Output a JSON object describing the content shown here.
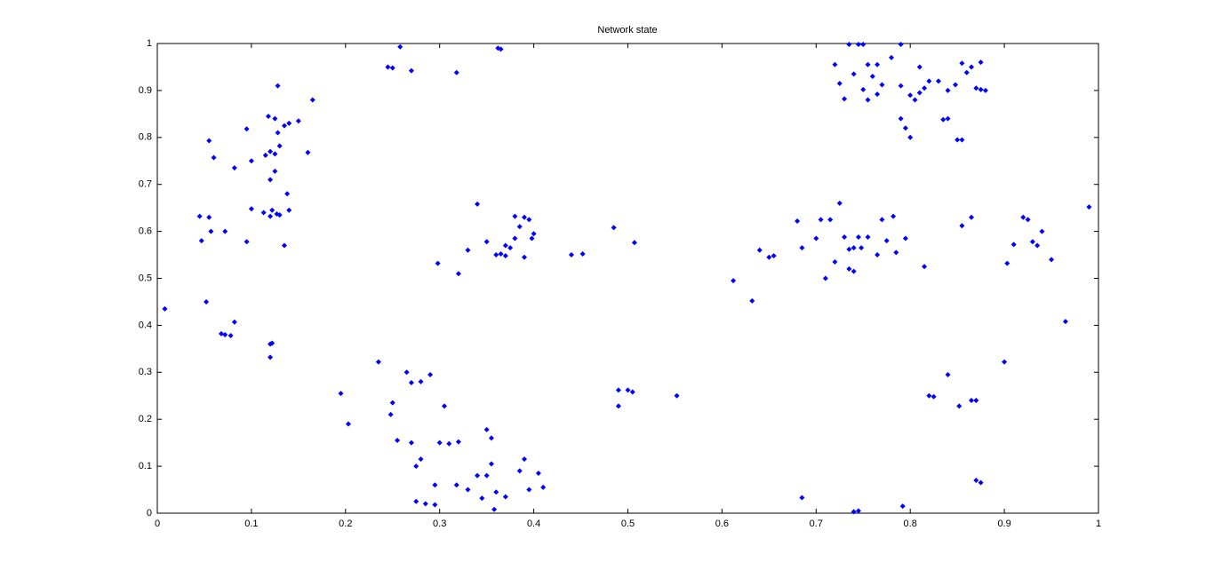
{
  "chart_data": {
    "type": "scatter",
    "title": "Network state",
    "x": [
      0.008,
      0.052,
      0.072,
      0.068,
      0.078,
      0.082,
      0.12,
      0.122,
      0.12,
      0.045,
      0.055,
      0.047,
      0.057,
      0.072,
      0.095,
      0.1,
      0.113,
      0.12,
      0.13,
      0.14,
      0.135,
      0.138,
      0.122,
      0.127,
      0.055,
      0.06,
      0.082,
      0.095,
      0.1,
      0.115,
      0.125,
      0.12,
      0.13,
      0.12,
      0.125,
      0.118,
      0.125,
      0.135,
      0.14,
      0.128,
      0.128,
      0.15,
      0.16,
      0.165,
      0.245,
      0.25,
      0.258,
      0.27,
      0.318,
      0.365,
      0.362,
      0.34,
      0.35,
      0.33,
      0.36,
      0.37,
      0.365,
      0.37,
      0.375,
      0.38,
      0.39,
      0.395,
      0.385,
      0.38,
      0.39,
      0.4,
      0.398,
      0.44,
      0.452,
      0.485,
      0.507,
      0.298,
      0.32,
      0.195,
      0.203,
      0.235,
      0.25,
      0.248,
      0.255,
      0.265,
      0.27,
      0.28,
      0.29,
      0.27,
      0.275,
      0.28,
      0.295,
      0.305,
      0.3,
      0.31,
      0.32,
      0.275,
      0.285,
      0.295,
      0.318,
      0.33,
      0.34,
      0.35,
      0.345,
      0.35,
      0.355,
      0.355,
      0.36,
      0.358,
      0.37,
      0.385,
      0.39,
      0.405,
      0.41,
      0.395,
      0.49,
      0.5,
      0.505,
      0.49,
      0.552,
      0.612,
      0.632,
      0.64,
      0.65,
      0.655,
      0.68,
      0.685,
      0.7,
      0.705,
      0.715,
      0.725,
      0.72,
      0.71,
      0.73,
      0.74,
      0.735,
      0.748,
      0.745,
      0.755,
      0.74,
      0.735,
      0.765,
      0.77,
      0.775,
      0.785,
      0.782,
      0.795,
      0.815,
      0.685,
      0.74,
      0.745,
      0.792,
      0.72,
      0.725,
      0.73,
      0.74,
      0.745,
      0.735,
      0.75,
      0.755,
      0.765,
      0.76,
      0.77,
      0.75,
      0.755,
      0.765,
      0.78,
      0.79,
      0.79,
      0.8,
      0.81,
      0.805,
      0.815,
      0.82,
      0.83,
      0.81,
      0.84,
      0.84,
      0.835,
      0.85,
      0.855,
      0.86,
      0.865,
      0.87,
      0.875,
      0.88,
      0.855,
      0.875,
      0.79,
      0.795,
      0.8,
      0.848,
      0.82,
      0.825,
      0.84,
      0.852,
      0.865,
      0.87,
      0.87,
      0.875,
      0.855,
      0.865,
      0.9,
      0.903,
      0.91,
      0.92,
      0.925,
      0.93,
      0.935,
      0.94,
      0.95,
      0.965,
      0.99
    ],
    "values": [
      0.435,
      0.45,
      0.38,
      0.382,
      0.378,
      0.407,
      0.36,
      0.362,
      0.332,
      0.632,
      0.63,
      0.58,
      0.6,
      0.6,
      0.578,
      0.648,
      0.64,
      0.632,
      0.635,
      0.645,
      0.57,
      0.68,
      0.645,
      0.637,
      0.793,
      0.757,
      0.735,
      0.818,
      0.75,
      0.762,
      0.765,
      0.77,
      0.782,
      0.71,
      0.728,
      0.845,
      0.84,
      0.825,
      0.83,
      0.81,
      0.91,
      0.835,
      0.768,
      0.88,
      0.95,
      0.948,
      0.993,
      0.942,
      0.938,
      0.988,
      0.99,
      0.658,
      0.578,
      0.56,
      0.55,
      0.548,
      0.552,
      0.57,
      0.565,
      0.632,
      0.63,
      0.625,
      0.61,
      0.585,
      0.545,
      0.595,
      0.585,
      0.55,
      0.552,
      0.608,
      0.576,
      0.532,
      0.51,
      0.255,
      0.19,
      0.322,
      0.235,
      0.21,
      0.155,
      0.3,
      0.278,
      0.28,
      0.295,
      0.15,
      0.1,
      0.115,
      0.06,
      0.228,
      0.15,
      0.148,
      0.152,
      0.025,
      0.02,
      0.018,
      0.06,
      0.05,
      0.08,
      0.08,
      0.032,
      0.178,
      0.16,
      0.105,
      0.045,
      0.008,
      0.035,
      0.09,
      0.115,
      0.085,
      0.055,
      0.05,
      0.262,
      0.262,
      0.258,
      0.228,
      0.25,
      0.495,
      0.452,
      0.56,
      0.545,
      0.548,
      0.622,
      0.565,
      0.585,
      0.625,
      0.625,
      0.66,
      0.535,
      0.5,
      0.588,
      0.565,
      0.562,
      0.565,
      0.588,
      0.588,
      0.515,
      0.52,
      0.55,
      0.625,
      0.58,
      0.555,
      0.632,
      0.585,
      0.525,
      0.033,
      0.003,
      0.005,
      0.015,
      0.955,
      0.915,
      0.882,
      0.935,
      0.998,
      0.998,
      0.998,
      0.955,
      0.955,
      0.93,
      0.912,
      0.902,
      0.88,
      0.892,
      0.97,
      0.998,
      0.91,
      0.89,
      0.895,
      0.88,
      0.905,
      0.92,
      0.92,
      0.95,
      0.9,
      0.84,
      0.838,
      0.795,
      0.795,
      0.938,
      0.95,
      0.905,
      0.902,
      0.9,
      0.958,
      0.96,
      0.84,
      0.82,
      0.8,
      0.912,
      0.25,
      0.248,
      0.295,
      0.228,
      0.24,
      0.24,
      0.07,
      0.065,
      0.612,
      0.63,
      0.322,
      0.532,
      0.572,
      0.63,
      0.625,
      0.578,
      0.57,
      0.6,
      0.54,
      0.408,
      0.652
    ],
    "color": "#0000ff",
    "xlim": [
      0,
      1
    ],
    "xticks": [
      0,
      0.1,
      0.2,
      0.3,
      0.4,
      0.5,
      0.6,
      0.7,
      0.8,
      0.9,
      1
    ],
    "ylim": [
      0,
      1
    ],
    "yticks": [
      0,
      0.1,
      0.2,
      0.3,
      0.4,
      0.5,
      0.6,
      0.7,
      0.8,
      0.9,
      1
    ],
    "grid": false
  }
}
